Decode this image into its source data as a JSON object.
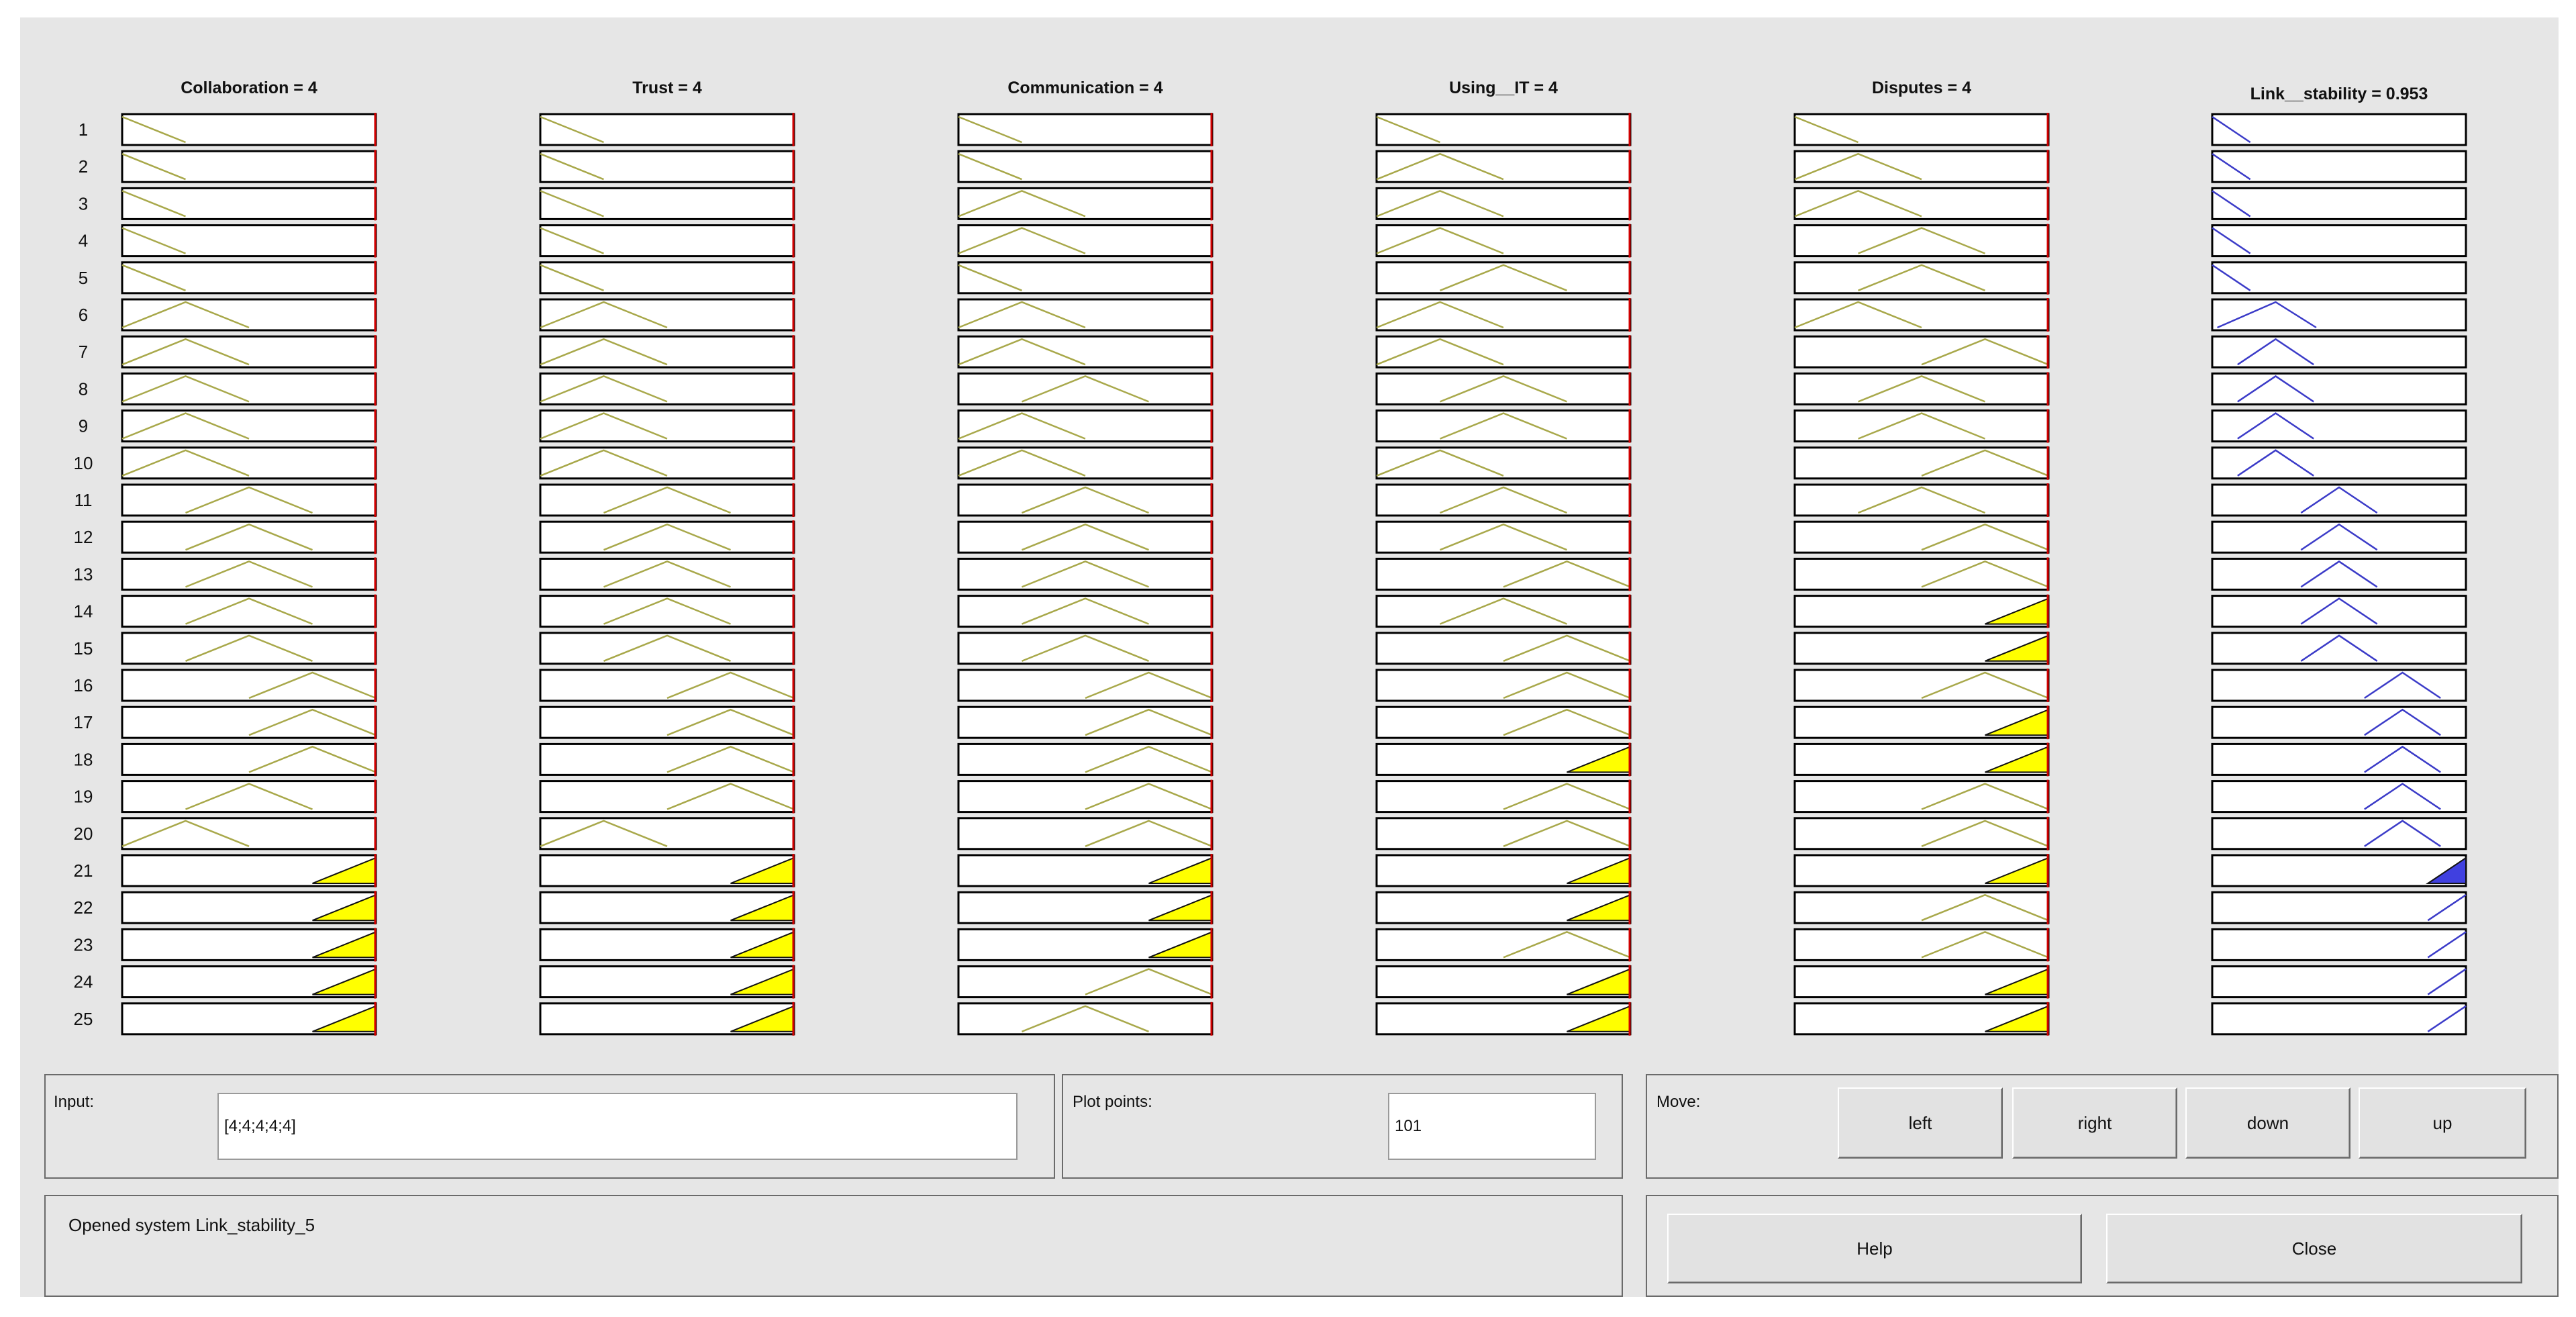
{
  "columns": [
    {
      "title": "Collaboration = 4",
      "kind": "input",
      "rules": [
        "z",
        "z",
        "z",
        "z",
        "z",
        "l",
        "l",
        "l",
        "l",
        "l",
        "m",
        "m",
        "m",
        "m",
        "m",
        "h",
        "h",
        "h",
        "m",
        "l",
        "y",
        "y",
        "y",
        "y",
        "y"
      ]
    },
    {
      "title": "Trust = 4",
      "kind": "input",
      "rules": [
        "z",
        "z",
        "z",
        "z",
        "z",
        "l",
        "l",
        "l",
        "l",
        "l",
        "m",
        "m",
        "m",
        "m",
        "m",
        "h",
        "h",
        "h",
        "h",
        "l",
        "y",
        "y",
        "y",
        "y",
        "y"
      ]
    },
    {
      "title": "Communication = 4",
      "kind": "input",
      "rules": [
        "z",
        "z",
        "l",
        "l",
        "z",
        "l",
        "l",
        "m",
        "l",
        "l",
        "m",
        "m",
        "m",
        "m",
        "m",
        "h",
        "h",
        "h",
        "h",
        "h",
        "y",
        "y",
        "y",
        "h",
        "m"
      ]
    },
    {
      "title": "Using__IT = 4",
      "kind": "input",
      "rules": [
        "z",
        "l",
        "l",
        "l",
        "m",
        "l",
        "l",
        "m",
        "m",
        "l",
        "m",
        "m",
        "h",
        "m",
        "h",
        "h",
        "h",
        "y",
        "h",
        "h",
        "y",
        "y",
        "h",
        "y",
        "y"
      ]
    },
    {
      "title": "Disputes = 4",
      "kind": "input",
      "rules": [
        "z",
        "l",
        "l",
        "m",
        "m",
        "l",
        "h",
        "m",
        "m",
        "h",
        "m",
        "h",
        "h",
        "y",
        "y",
        "h",
        "y",
        "y",
        "h",
        "h",
        "y",
        "h",
        "h",
        "y",
        "y"
      ]
    },
    {
      "title": "Link__stability = 0.953",
      "kind": "output",
      "rules": [
        "a",
        "a",
        "a",
        "a",
        "a",
        "b",
        "c",
        "c",
        "c",
        "c",
        "d",
        "d",
        "d",
        "d",
        "d",
        "e",
        "e",
        "e",
        "e",
        "e",
        "F",
        "f",
        "f",
        "f",
        "f"
      ]
    }
  ],
  "row_numbers": [
    "1",
    "2",
    "3",
    "4",
    "5",
    "6",
    "7",
    "8",
    "9",
    "10",
    "11",
    "12",
    "13",
    "14",
    "15",
    "16",
    "17",
    "18",
    "19",
    "20",
    "21",
    "22",
    "23",
    "24",
    "25"
  ],
  "input_panel": {
    "label": "Input:",
    "value": "[4;4;4;4;4]"
  },
  "plot_points": {
    "label": "Plot points:",
    "value": "101"
  },
  "move": {
    "label": "Move:",
    "buttons": [
      "left",
      "right",
      "down",
      "up"
    ]
  },
  "status": {
    "text": "Opened system Link_stability_5"
  },
  "buttons": {
    "help": "Help",
    "close": "Close"
  },
  "colors": {
    "input_mf": "#a8a84a",
    "output_mf": "#3b3bc8",
    "fill_input": "#ffff00",
    "fill_output": "#4040e0",
    "input_indicator": "#d00000",
    "window_bg": "#e6e6e6"
  }
}
